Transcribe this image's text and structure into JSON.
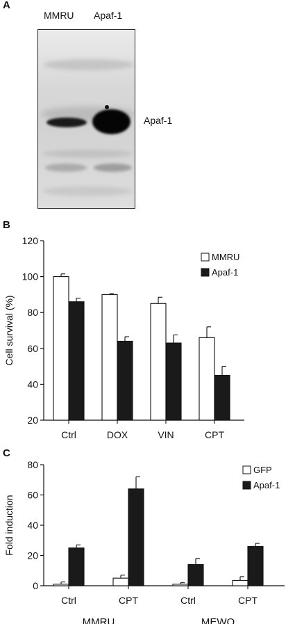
{
  "panel_a": {
    "letter": "A",
    "lanes": [
      "MMRU",
      "Apaf-1"
    ],
    "band_label": "Apaf-1"
  },
  "chart_data": [
    {
      "panel": "B",
      "type": "bar",
      "ylabel": "Cell survival (%)",
      "xlabel": "",
      "ylim": [
        20,
        120
      ],
      "yticks": [
        20,
        40,
        60,
        80,
        100,
        120
      ],
      "categories": [
        "Ctrl",
        "DOX",
        "VIN",
        "CPT"
      ],
      "series": [
        {
          "name": "MMRU",
          "values": [
            100,
            90,
            85,
            66
          ],
          "errors": [
            1.5,
            0.5,
            3.5,
            6
          ],
          "fill": "#ffffff"
        },
        {
          "name": "Apaf-1",
          "values": [
            86,
            64,
            63,
            45
          ],
          "errors": [
            2,
            2.5,
            4.5,
            5
          ],
          "fill": "#1a1a1a"
        }
      ],
      "legend": "top-right"
    },
    {
      "panel": "C",
      "type": "bar",
      "ylabel": "Fold induction",
      "xlabel": "",
      "ylim": [
        0,
        80
      ],
      "yticks": [
        0,
        20,
        40,
        60,
        80
      ],
      "categories": [
        "Ctrl",
        "CPT",
        "Ctrl",
        "CPT"
      ],
      "groups": [
        "MMRU",
        "MEWO"
      ],
      "series": [
        {
          "name": "GFP",
          "values": [
            1,
            5,
            1,
            3.5
          ],
          "errors": [
            1.5,
            2,
            1,
            2.5
          ],
          "fill": "#ffffff"
        },
        {
          "name": "Apaf-1",
          "values": [
            25,
            64,
            14,
            26
          ],
          "errors": [
            2,
            8,
            4,
            2
          ],
          "fill": "#1a1a1a"
        }
      ],
      "legend": "top-right"
    }
  ]
}
